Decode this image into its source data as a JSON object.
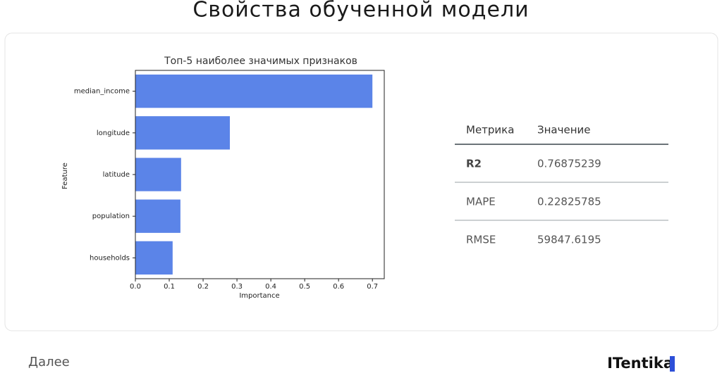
{
  "header": {
    "title": "Свойства обученной модели"
  },
  "chart_data": {
    "type": "barh",
    "title": "Топ-5 наиболее значимых признаков",
    "x_label": "Importance",
    "y_label": "Feature",
    "categories": [
      "median_income",
      "longitude",
      "latitude",
      "population",
      "households"
    ],
    "values": [
      0.7,
      0.279,
      0.135,
      0.133,
      0.11
    ],
    "color": "#5b84e8",
    "xlim": [
      0,
      0.735
    ],
    "xticks": [
      {
        "value": 0,
        "label": "0.0"
      },
      0.1,
      0.2,
      0.3,
      0.4,
      0.5,
      0.6,
      0.7
    ]
  },
  "table": {
    "columns": [
      "Метрика",
      "Значение"
    ],
    "rows": [
      [
        "R2",
        "0.76875239"
      ],
      [
        "MAPE",
        "0.22825785"
      ],
      [
        "RMSE",
        "59847.6195"
      ]
    ]
  },
  "footer": {
    "next": "Далее",
    "logo": "ITentika"
  }
}
